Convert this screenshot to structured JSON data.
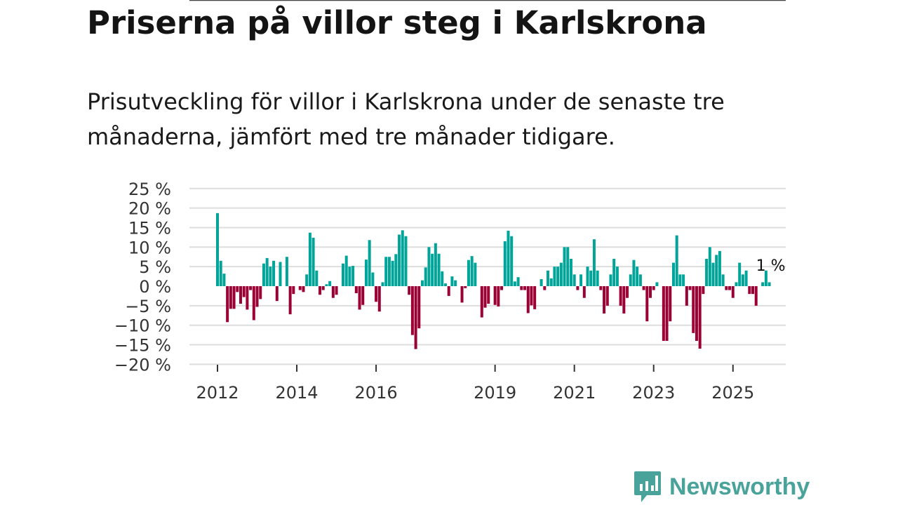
{
  "title": "Priserna på villor steg i Karlskrona",
  "subtitle": "Prisutveckling för villor i Karlskrona under de senaste tre månaderna, jämfört med tre månader tidigare.",
  "brand": "Newsworthy",
  "colors": {
    "positive": "#00a499",
    "negative": "#9b0035",
    "brand": "#4aa39a"
  },
  "chart_data": {
    "type": "bar",
    "title": "Priserna på villor steg i Karlskrona",
    "xlabel": "",
    "ylabel": "",
    "start_month": "2012-01",
    "frequency": "monthly",
    "ylim": [
      -20,
      25
    ],
    "yticks": [
      25,
      20,
      15,
      10,
      5,
      0,
      -5,
      -10,
      -15,
      -20
    ],
    "ytick_labels": [
      "25 %",
      "20 %",
      "15 %",
      "10 %",
      "5 %",
      "0 %",
      "−5 %",
      "−10 %",
      "−15 %",
      "−20 %"
    ],
    "xticks": [
      2012,
      2014,
      2016,
      2019,
      2021,
      2023,
      2025
    ],
    "xtick_labels": [
      "2012",
      "2014",
      "2016",
      "2019",
      "2021",
      "2023",
      "2025"
    ],
    "grid": true,
    "annotation": "1 %",
    "values": [
      18.7,
      6.5,
      3.2,
      -9.2,
      -5.8,
      -5.8,
      -1.5,
      -4.5,
      -2.8,
      -6.0,
      -1.0,
      -8.7,
      -5.3,
      -3.3,
      5.8,
      7.2,
      5.0,
      6.5,
      -3.8,
      6.2,
      0,
      7.5,
      -7.2,
      -2.0,
      0,
      -1.0,
      -1.5,
      3.0,
      13.7,
      12.4,
      4.0,
      -2.2,
      -1.0,
      0.5,
      1.3,
      -3.0,
      -2.2,
      0,
      5.8,
      7.8,
      5.0,
      5.2,
      -1.8,
      -6.0,
      -4.8,
      6.8,
      11.8,
      3.5,
      -4.0,
      -6.5,
      1.0,
      7.5,
      7.5,
      6.5,
      8.2,
      13.2,
      14.3,
      12.8,
      -2.2,
      -12.5,
      -16.1,
      -10.8,
      1.5,
      4.8,
      10.0,
      8.3,
      11.0,
      8.3,
      3.8,
      0.7,
      -2.5,
      2.5,
      1.5,
      0,
      -4.2,
      -0.5,
      6.7,
      7.7,
      6.0,
      0,
      -8.0,
      -5.5,
      -4.5,
      0,
      -4.8,
      -5.2,
      -1.0,
      11.5,
      14.2,
      12.8,
      1.2,
      2.3,
      -1.0,
      -1.0,
      -6.9,
      -4.9,
      -5.9,
      0,
      1.8,
      -1.0,
      4.0,
      2.0,
      5.0,
      5.0,
      6.0,
      10.0,
      10.0,
      7.0,
      3.0,
      -1.0,
      3.0,
      -3.0,
      5.0,
      4.0,
      12.0,
      4.0,
      -1.0,
      -7.0,
      -5.0,
      3.0,
      7.0,
      5.0,
      -5.0,
      -7.0,
      -3.0,
      3.0,
      6.7,
      5.0,
      3.0,
      -1.0,
      -9.0,
      -3.0,
      -1.0,
      1.0,
      0,
      -14.0,
      -14.0,
      -9.0,
      6.0,
      13.0,
      3.0,
      3.0,
      -5.0,
      -1.0,
      -12.0,
      -14.0,
      -16.0,
      -2.0,
      7.0,
      10.0,
      6.0,
      8.0,
      9.0,
      3.0,
      -1.0,
      -1.0,
      -3.0,
      1.0,
      6.0,
      3.0,
      4.0,
      -2.0,
      -2.0,
      -5.0,
      0,
      1.0,
      4.0,
      1.0
    ]
  }
}
